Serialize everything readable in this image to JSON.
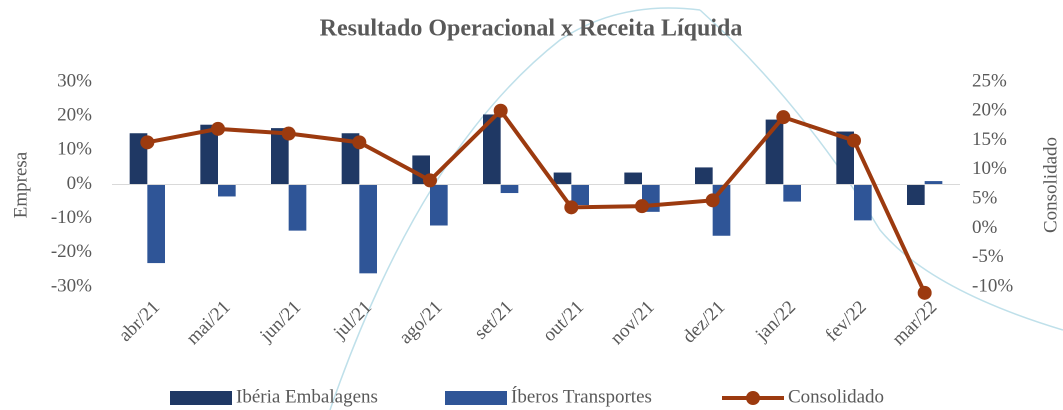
{
  "chart_data": {
    "type": "combo",
    "title": "Resultado Operacional x Receita Líquida",
    "y_label": "Empresa",
    "y2_label": "Consolidado",
    "categories": [
      "abr/21",
      "mai/21",
      "jun/21",
      "jul/21",
      "ago/21",
      "set/21",
      "out/21",
      "nov/21",
      "dez/21",
      "jan/22",
      "fev/22",
      "mar/22"
    ],
    "ylim": [
      -30,
      30
    ],
    "yticks": [
      {
        "value": -30,
        "label": "-30%"
      },
      {
        "value": -20,
        "label": "-20%"
      },
      {
        "value": -10,
        "label": "-10%"
      },
      {
        "value": 0,
        "label": "0%"
      },
      {
        "value": 10,
        "label": "10%"
      },
      {
        "value": 20,
        "label": "20%"
      },
      {
        "value": 30,
        "label": "30%"
      }
    ],
    "y2lim": [
      -10,
      25
    ],
    "y2ticks": [
      {
        "value": -10,
        "label": "-10%"
      },
      {
        "value": -5,
        "label": "-5%"
      },
      {
        "value": 0,
        "label": "0%"
      },
      {
        "value": 5,
        "label": "5%"
      },
      {
        "value": 10,
        "label": "10%"
      },
      {
        "value": 15,
        "label": "15%"
      },
      {
        "value": 20,
        "label": "20%"
      },
      {
        "value": 25,
        "label": "25%"
      }
    ],
    "series": [
      {
        "name": "Ibéria Embalagens",
        "type": "bar",
        "color": "#1f3864",
        "values": [
          15,
          17.5,
          16.5,
          15,
          8.5,
          20.5,
          3.5,
          3.5,
          5,
          19,
          15.5,
          -6
        ]
      },
      {
        "name": "Íberos Transportes",
        "type": "bar",
        "color": "#2f5597",
        "values": [
          -23,
          -3.5,
          -13.5,
          -26,
          -12,
          -2.5,
          -6,
          -8,
          -15,
          -5,
          -10.5,
          1
        ]
      },
      {
        "name": "Consolidado",
        "type": "line",
        "axis": "y2",
        "color": "#9c3a0f",
        "values": [
          14.7,
          17,
          16.2,
          14.7,
          8.2,
          20.1,
          3.6,
          3.8,
          4.8,
          19,
          15,
          -11
        ]
      }
    ]
  }
}
